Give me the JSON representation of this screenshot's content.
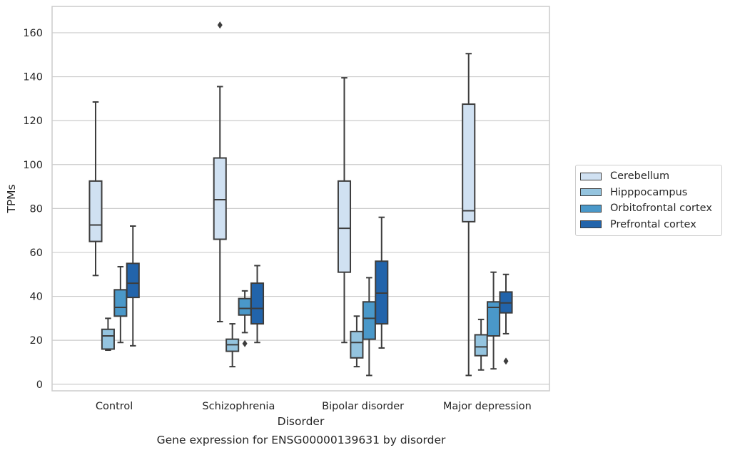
{
  "chart_data": {
    "type": "box",
    "xlabel": "Disorder",
    "ylabel": "TPMs",
    "caption": "Gene expression for ENSG00000139631 by disorder",
    "ylim": [
      -3,
      172
    ],
    "yticks": [
      0,
      20,
      40,
      60,
      80,
      100,
      120,
      140,
      160
    ],
    "yticklabels": [
      "0",
      "20",
      "40",
      "60",
      "80",
      "100",
      "120",
      "140",
      "160"
    ],
    "grid": true,
    "legend_position": "right",
    "categories": [
      "Control",
      "Schizophrenia",
      "Bipolar disorder",
      "Major depression"
    ],
    "series": [
      {
        "name": "Cerebellum",
        "color": "#d0e1f2",
        "boxes": [
          {
            "whislo": 49.5,
            "q1": 65,
            "med": 72.5,
            "q3": 92.5,
            "whishi": 128.5,
            "fliers": []
          },
          {
            "whislo": 28.5,
            "q1": 66,
            "med": 84,
            "q3": 103,
            "whishi": 135.5,
            "fliers": [
              163.5
            ]
          },
          {
            "whislo": 19,
            "q1": 51,
            "med": 71,
            "q3": 92.5,
            "whishi": 139.5,
            "fliers": []
          },
          {
            "whislo": 4,
            "q1": 74,
            "med": 79,
            "q3": 127.5,
            "whishi": 150.5,
            "fliers": []
          }
        ]
      },
      {
        "name": "Hipppocampus",
        "color": "#94c4df",
        "boxes": [
          {
            "whislo": 15.5,
            "q1": 16,
            "med": 22,
            "q3": 25,
            "whishi": 30,
            "fliers": []
          },
          {
            "whislo": 8,
            "q1": 15,
            "med": 18,
            "q3": 20.5,
            "whishi": 27.5,
            "fliers": []
          },
          {
            "whislo": 8,
            "q1": 12,
            "med": 19,
            "q3": 24,
            "whishi": 31,
            "fliers": []
          },
          {
            "whislo": 6.5,
            "q1": 13,
            "med": 17,
            "q3": 22.5,
            "whishi": 29.5,
            "fliers": []
          }
        ]
      },
      {
        "name": "Orbitofrontal cortex",
        "color": "#4a98c9",
        "boxes": [
          {
            "whislo": 19,
            "q1": 31,
            "med": 35,
            "q3": 43,
            "whishi": 53.5,
            "fliers": []
          },
          {
            "whislo": 23.5,
            "q1": 31.5,
            "med": 34.5,
            "q3": 39,
            "whishi": 42.5,
            "fliers": [
              18.5
            ]
          },
          {
            "whislo": 4,
            "q1": 20.5,
            "med": 30,
            "q3": 37.5,
            "whishi": 48.5,
            "fliers": []
          },
          {
            "whislo": 7,
            "q1": 22,
            "med": 35,
            "q3": 37.5,
            "whishi": 51,
            "fliers": []
          }
        ]
      },
      {
        "name": "Prefrontal cortex",
        "color": "#2264ab",
        "boxes": [
          {
            "whislo": 17.5,
            "q1": 39.5,
            "med": 46,
            "q3": 55,
            "whishi": 72,
            "fliers": []
          },
          {
            "whislo": 19,
            "q1": 27.5,
            "med": 34.5,
            "q3": 46,
            "whishi": 54,
            "fliers": []
          },
          {
            "whislo": 16.5,
            "q1": 27.5,
            "med": 41.5,
            "q3": 56,
            "whishi": 76,
            "fliers": []
          },
          {
            "whislo": 23,
            "q1": 32.5,
            "med": 37,
            "q3": 42,
            "whishi": 50,
            "fliers": [
              10.5
            ]
          }
        ]
      }
    ]
  }
}
